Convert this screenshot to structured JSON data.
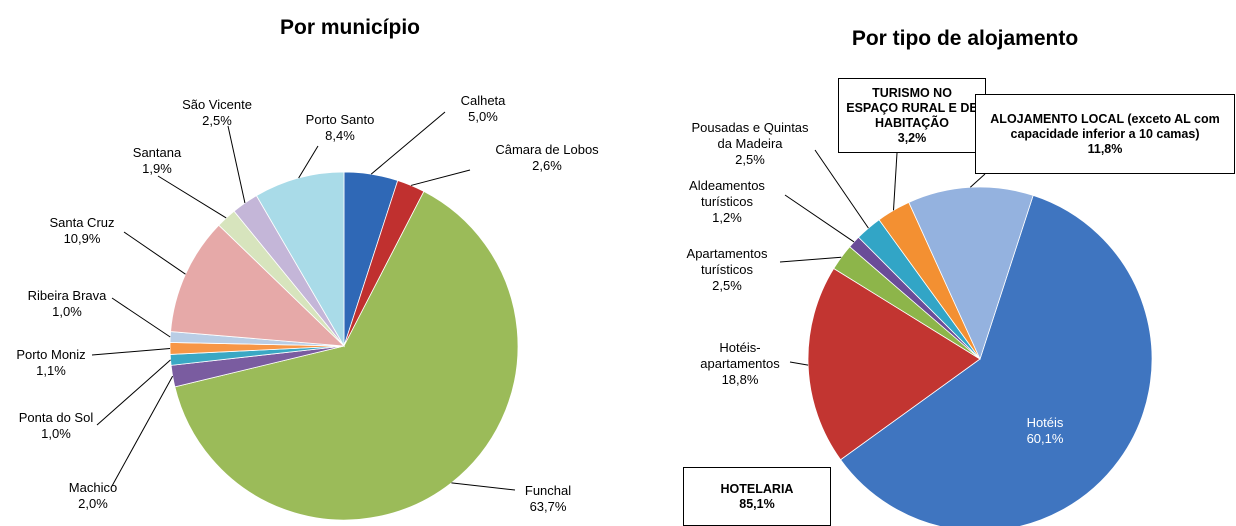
{
  "chart_data": [
    {
      "type": "pie",
      "title": "Por município",
      "categories": [
        "Calheta",
        "Câmara de Lobos",
        "Funchal",
        "Machico",
        "Ponta do Sol",
        "Porto Moniz",
        "Ribeira Brava",
        "Santa Cruz",
        "Santana",
        "São Vicente",
        "Porto Santo"
      ],
      "values": [
        5.0,
        2.6,
        63.7,
        2.0,
        1.0,
        1.1,
        1.0,
        10.9,
        1.9,
        2.5,
        8.4
      ],
      "value_labels": [
        "5,0%",
        "2,6%",
        "63,7%",
        "2,0%",
        "1,0%",
        "1,1%",
        "1,0%",
        "10,9%",
        "1,9%",
        "2,5%",
        "8,4%"
      ],
      "colors": [
        "#2f68b6",
        "#c0302f",
        "#9bbb59",
        "#7a5ca0",
        "#3aa8c4",
        "#f79646",
        "#b9cde5",
        "#e6a9a8",
        "#d7e4bd",
        "#c4b6d8",
        "#a9dbe8"
      ]
    },
    {
      "type": "pie",
      "title": "Por tipo de alojamento",
      "categories": [
        "Hotéis",
        "Hotéis-apartamentos",
        "Apartamentos turísticos",
        "Aldeamentos turísticos",
        "Pousadas e Quintas da Madeira",
        "TURISMO NO ESPAÇO RURAL E DE HABITAÇÃO",
        "ALOJAMENTO LOCAL (exceto AL com capacidade inferior a 10 camas)"
      ],
      "values": [
        60.1,
        18.8,
        2.5,
        1.2,
        2.5,
        3.2,
        11.8
      ],
      "value_labels": [
        "60,1%",
        "18,8%",
        "2,5%",
        "1,2%",
        "2,5%",
        "3,2%",
        "11,8%"
      ],
      "colors": [
        "#3f75c0",
        "#c23531",
        "#8db54a",
        "#6a4c98",
        "#32a5c6",
        "#f39032",
        "#94b2df"
      ],
      "annotations": [
        {
          "text": "HOTELARIA",
          "value": 85.1,
          "value_label": "85,1%"
        }
      ]
    }
  ]
}
